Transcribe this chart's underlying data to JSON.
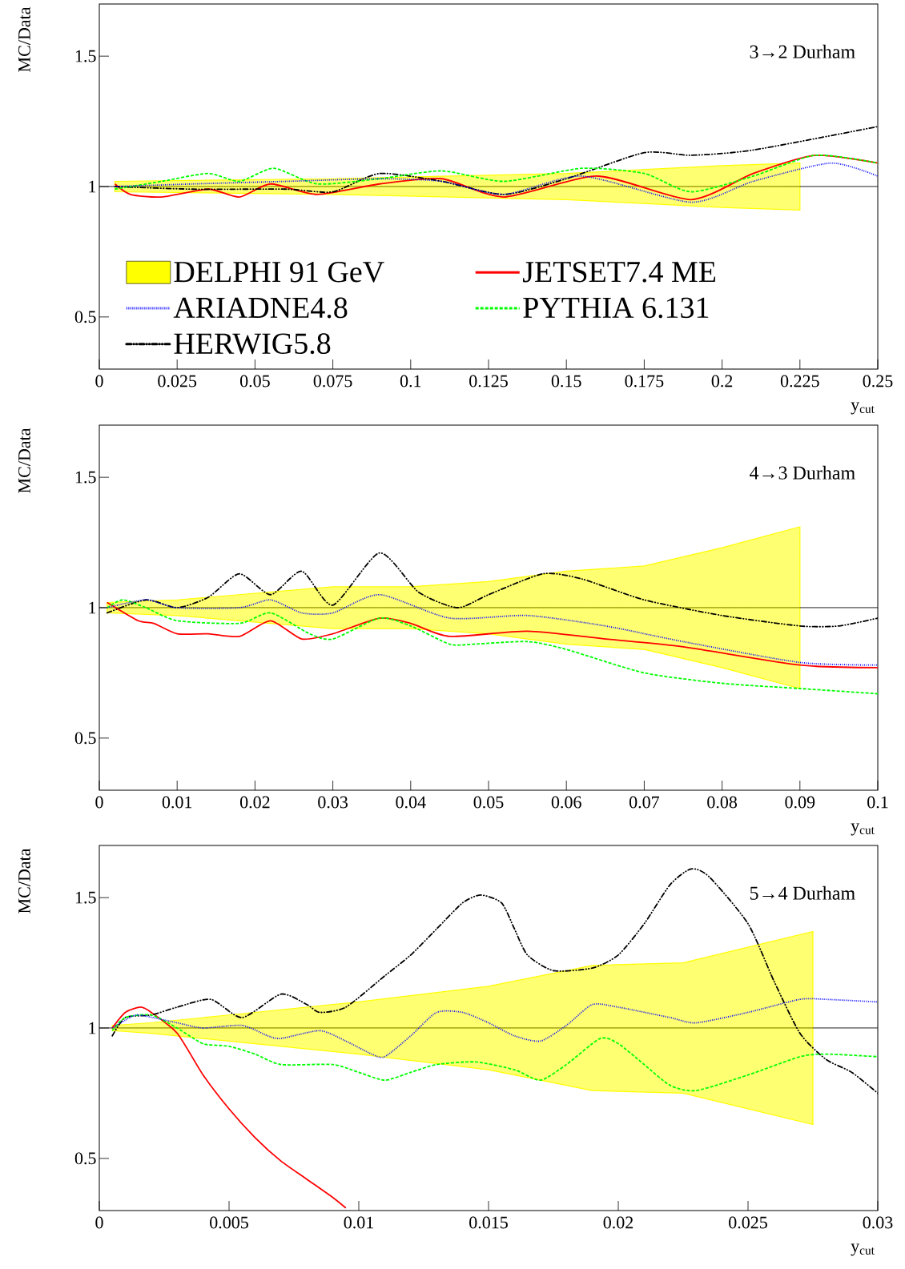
{
  "chart_data": [
    {
      "type": "line",
      "xlabel": "y$_{cut}$",
      "ylabel": "MC/Data",
      "annotations": [
        "3→2 Durham"
      ],
      "xlim": [
        0,
        0.25
      ],
      "ylim": [
        0.3,
        1.7
      ],
      "xticks": [
        0,
        0.025,
        0.05,
        0.075,
        0.1,
        0.125,
        0.15,
        0.175,
        0.2,
        0.225,
        0.25
      ],
      "yticks": [
        0.5,
        1,
        1.5
      ],
      "legend": "bottom left",
      "ref_lines": [
        {
          "axis": "y",
          "value": 1,
          "color": "#000000"
        }
      ],
      "series": [
        {
          "name": "DELPHI 91 GeV",
          "color": "#ffff00",
          "x": [
            0.005,
            0.075,
            0.15,
            0.2,
            0.225
          ],
          "values": [
            1,
            1,
            1,
            1,
            1
          ],
          "lower": [
            0.98,
            0.97,
            0.95,
            0.92,
            0.91
          ],
          "upper": [
            1.02,
            1.03,
            1.05,
            1.08,
            1.09
          ]
        },
        {
          "name": "JETSET7.4 ME",
          "color": "#ff0000",
          "line_style": "solid",
          "x": [
            0.005,
            0.01,
            0.02,
            0.035,
            0.045,
            0.055,
            0.07,
            0.09,
            0.11,
            0.13,
            0.16,
            0.19,
            0.21,
            0.23,
            0.25
          ],
          "values": [
            1.01,
            0.97,
            0.96,
            0.99,
            0.96,
            1.01,
            0.97,
            1.01,
            1.03,
            0.96,
            1.04,
            0.95,
            1.05,
            1.12,
            1.09
          ]
        },
        {
          "name": "ARIADNE4.8",
          "color": "#0000ff",
          "line_style": "dotted",
          "x": [
            0.005,
            0.03,
            0.06,
            0.09,
            0.11,
            0.13,
            0.155,
            0.19,
            0.21,
            0.235,
            0.25
          ],
          "values": [
            1.0,
            1.01,
            1.02,
            1.03,
            1.02,
            0.97,
            1.04,
            0.94,
            1.02,
            1.09,
            1.04
          ]
        },
        {
          "name": "PYTHIA 6.131",
          "color": "#00ff00",
          "line_style": "dashed",
          "x": [
            0.005,
            0.02,
            0.035,
            0.045,
            0.056,
            0.07,
            0.09,
            0.11,
            0.13,
            0.155,
            0.175,
            0.19,
            0.21,
            0.23,
            0.25
          ],
          "values": [
            0.99,
            1.02,
            1.05,
            1.02,
            1.07,
            1.01,
            1.03,
            1.06,
            1.02,
            1.07,
            1.05,
            0.98,
            1.04,
            1.12,
            1.09
          ]
        },
        {
          "name": "HERWIG5.8",
          "color": "#000000",
          "line_style": "dashdot",
          "x": [
            0.005,
            0.03,
            0.06,
            0.075,
            0.09,
            0.11,
            0.13,
            0.15,
            0.175,
            0.19,
            0.21,
            0.25
          ],
          "values": [
            1.0,
            0.99,
            0.99,
            0.98,
            1.05,
            1.02,
            0.97,
            1.03,
            1.13,
            1.12,
            1.14,
            1.23
          ]
        }
      ]
    },
    {
      "type": "line",
      "xlabel": "y$_{cut}$",
      "ylabel": "MC/Data",
      "annotations": [
        "4→3 Durham"
      ],
      "xlim": [
        0,
        0.1
      ],
      "ylim": [
        0.3,
        1.7
      ],
      "xticks": [
        0,
        0.01,
        0.02,
        0.03,
        0.04,
        0.05,
        0.06,
        0.07,
        0.08,
        0.09,
        0.1
      ],
      "yticks": [
        0.5,
        1,
        1.5
      ],
      "ref_lines": [
        {
          "axis": "y",
          "value": 1,
          "color": "#000000"
        }
      ],
      "series": [
        {
          "color": "#ffff00",
          "x": [
            0.001,
            0.01,
            0.03,
            0.04,
            0.05,
            0.06,
            0.07,
            0.08,
            0.09
          ],
          "values": [
            1,
            1,
            1,
            1,
            1,
            1,
            1,
            1,
            1
          ],
          "lower": [
            0.98,
            0.97,
            0.92,
            0.92,
            0.9,
            0.86,
            0.84,
            0.77,
            0.69
          ],
          "upper": [
            1.02,
            1.03,
            1.08,
            1.08,
            1.1,
            1.14,
            1.16,
            1.23,
            1.31
          ]
        },
        {
          "color": "#ff0000",
          "line_style": "solid",
          "x": [
            0.001,
            0.005,
            0.007,
            0.01,
            0.014,
            0.018,
            0.022,
            0.026,
            0.03,
            0.036,
            0.04,
            0.045,
            0.055,
            0.065,
            0.075,
            0.09,
            0.1
          ],
          "values": [
            1.02,
            0.95,
            0.94,
            0.9,
            0.9,
            0.89,
            0.95,
            0.88,
            0.9,
            0.96,
            0.94,
            0.89,
            0.91,
            0.88,
            0.85,
            0.78,
            0.77
          ]
        },
        {
          "color": "#0000ff",
          "line_style": "dotted",
          "x": [
            0.001,
            0.006,
            0.01,
            0.018,
            0.022,
            0.026,
            0.03,
            0.036,
            0.045,
            0.055,
            0.065,
            0.075,
            0.09,
            0.1
          ],
          "values": [
            1.0,
            1.03,
            1.0,
            1.0,
            1.03,
            0.98,
            0.98,
            1.05,
            0.96,
            0.97,
            0.93,
            0.87,
            0.79,
            0.78
          ]
        },
        {
          "color": "#00ff00",
          "line_style": "dashed",
          "x": [
            0.001,
            0.003,
            0.006,
            0.01,
            0.018,
            0.022,
            0.027,
            0.03,
            0.036,
            0.04,
            0.045,
            0.048,
            0.055,
            0.06,
            0.07,
            0.08,
            0.09,
            0.1
          ],
          "values": [
            1.0,
            1.03,
            1.0,
            0.95,
            0.94,
            0.98,
            0.9,
            0.88,
            0.96,
            0.93,
            0.86,
            0.86,
            0.87,
            0.84,
            0.75,
            0.71,
            0.69,
            0.67
          ]
        },
        {
          "color": "#000000",
          "line_style": "dashdot",
          "x": [
            0.001,
            0.006,
            0.01,
            0.014,
            0.018,
            0.022,
            0.026,
            0.03,
            0.036,
            0.041,
            0.046,
            0.05,
            0.057,
            0.062,
            0.07,
            0.08,
            0.09,
            0.095,
            0.1
          ],
          "values": [
            0.98,
            1.03,
            1.0,
            1.04,
            1.13,
            1.05,
            1.14,
            1.01,
            1.21,
            1.06,
            1.0,
            1.05,
            1.13,
            1.11,
            1.03,
            0.97,
            0.93,
            0.93,
            0.96
          ]
        }
      ]
    },
    {
      "type": "line",
      "xlabel": "y$_{cut}$",
      "ylabel": "MC/Data",
      "annotations": [
        "5→4 Durham"
      ],
      "xlim": [
        0,
        0.03
      ],
      "ylim": [
        0.3,
        1.7
      ],
      "xticks": [
        0,
        0.005,
        0.01,
        0.015,
        0.02,
        0.025,
        0.03
      ],
      "yticks": [
        0.5,
        1,
        1.5
      ],
      "ref_lines": [
        {
          "axis": "y",
          "value": 1,
          "color": "#000000"
        }
      ],
      "series": [
        {
          "color": "#ffff00",
          "x": [
            0.0005,
            0.002,
            0.005,
            0.01,
            0.015,
            0.0165,
            0.019,
            0.0225,
            0.0275
          ],
          "values": [
            1,
            1,
            1,
            1,
            1,
            1,
            1,
            1,
            1
          ],
          "lower": [
            0.99,
            0.98,
            0.95,
            0.9,
            0.84,
            0.81,
            0.76,
            0.75,
            0.63
          ],
          "upper": [
            1.01,
            1.02,
            1.05,
            1.1,
            1.16,
            1.19,
            1.24,
            1.25,
            1.37
          ]
        },
        {
          "color": "#ff0000",
          "line_style": "solid",
          "x": [
            0.0005,
            0.001,
            0.0016,
            0.002,
            0.003,
            0.004,
            0.005,
            0.006,
            0.007,
            0.008,
            0.009,
            0.0095
          ],
          "values": [
            1.0,
            1.06,
            1.08,
            1.06,
            0.98,
            0.82,
            0.69,
            0.58,
            0.49,
            0.42,
            0.35,
            0.31
          ]
        },
        {
          "color": "#0000ff",
          "line_style": "dotted",
          "x": [
            0.0005,
            0.001,
            0.0015,
            0.003,
            0.004,
            0.0055,
            0.0065,
            0.007,
            0.0085,
            0.0095,
            0.0105,
            0.011,
            0.012,
            0.013,
            0.014,
            0.015,
            0.016,
            0.017,
            0.018,
            0.019,
            0.02,
            0.022,
            0.023,
            0.025,
            0.027,
            0.028,
            0.03
          ],
          "values": [
            1.0,
            1.03,
            1.05,
            1.02,
            1.0,
            1.01,
            0.97,
            0.96,
            0.99,
            0.95,
            0.9,
            0.89,
            0.97,
            1.06,
            1.06,
            1.02,
            0.97,
            0.95,
            1.01,
            1.09,
            1.08,
            1.04,
            1.02,
            1.06,
            1.11,
            1.11,
            1.1
          ]
        },
        {
          "color": "#00ff00",
          "line_style": "dashed",
          "x": [
            0.0005,
            0.001,
            0.002,
            0.003,
            0.004,
            0.005,
            0.006,
            0.007,
            0.009,
            0.01,
            0.011,
            0.012,
            0.013,
            0.0145,
            0.016,
            0.017,
            0.018,
            0.0193,
            0.02,
            0.021,
            0.022,
            0.023,
            0.025,
            0.027,
            0.028,
            0.03
          ],
          "values": [
            0.99,
            1.04,
            1.05,
            1.0,
            0.94,
            0.93,
            0.9,
            0.86,
            0.86,
            0.83,
            0.8,
            0.83,
            0.86,
            0.87,
            0.84,
            0.8,
            0.86,
            0.96,
            0.94,
            0.86,
            0.78,
            0.76,
            0.82,
            0.89,
            0.9,
            0.89
          ]
        },
        {
          "color": "#000000",
          "line_style": "dashdot",
          "x": [
            0.0005,
            0.001,
            0.002,
            0.003,
            0.0043,
            0.0055,
            0.007,
            0.008,
            0.0085,
            0.0095,
            0.011,
            0.012,
            0.013,
            0.014,
            0.0147,
            0.0155,
            0.016,
            0.0165,
            0.0175,
            0.019,
            0.02,
            0.021,
            0.022,
            0.0228,
            0.0235,
            0.025,
            0.026,
            0.027,
            0.028,
            0.029,
            0.03
          ],
          "values": [
            0.97,
            1.04,
            1.05,
            1.08,
            1.11,
            1.04,
            1.13,
            1.09,
            1.06,
            1.08,
            1.2,
            1.28,
            1.38,
            1.48,
            1.51,
            1.48,
            1.38,
            1.28,
            1.22,
            1.23,
            1.28,
            1.4,
            1.55,
            1.61,
            1.58,
            1.4,
            1.18,
            0.98,
            0.88,
            0.83,
            0.75
          ]
        }
      ]
    }
  ]
}
